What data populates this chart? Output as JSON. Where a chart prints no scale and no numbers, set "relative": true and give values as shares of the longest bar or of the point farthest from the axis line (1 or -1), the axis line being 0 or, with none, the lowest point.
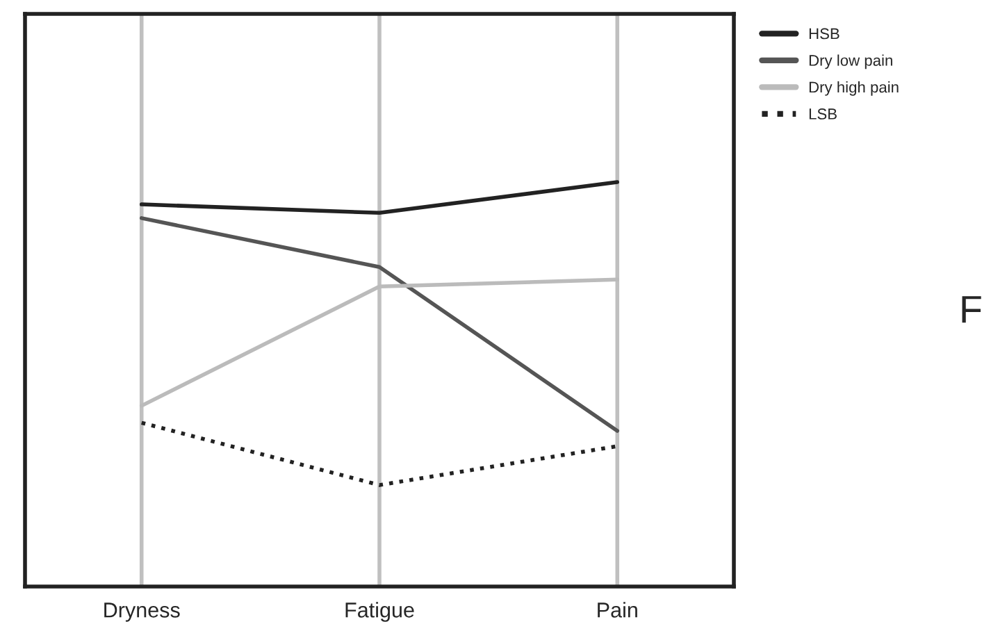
{
  "chart_data": {
    "type": "line",
    "relative": true,
    "categories": [
      "Dryness",
      "Fatigue",
      "Pain"
    ],
    "series": [
      {
        "name": "HSB",
        "color": "#222222",
        "values": [
          0.945,
          0.924,
          1.0
        ]
      },
      {
        "name": "Dry low pain",
        "color": "#555555",
        "values": [
          0.911,
          0.79,
          0.385
        ]
      },
      {
        "name": "Dry high pain",
        "color": "#bbbbbb",
        "values": [
          0.447,
          0.742,
          0.759
        ]
      },
      {
        "name": "LSB",
        "color": "#222222",
        "values": [
          0.405,
          0.251,
          0.347
        ],
        "line_style": "dotted"
      }
    ],
    "grid": "x",
    "legend": "top right",
    "marker": "none",
    "annotations": [
      "F"
    ]
  }
}
